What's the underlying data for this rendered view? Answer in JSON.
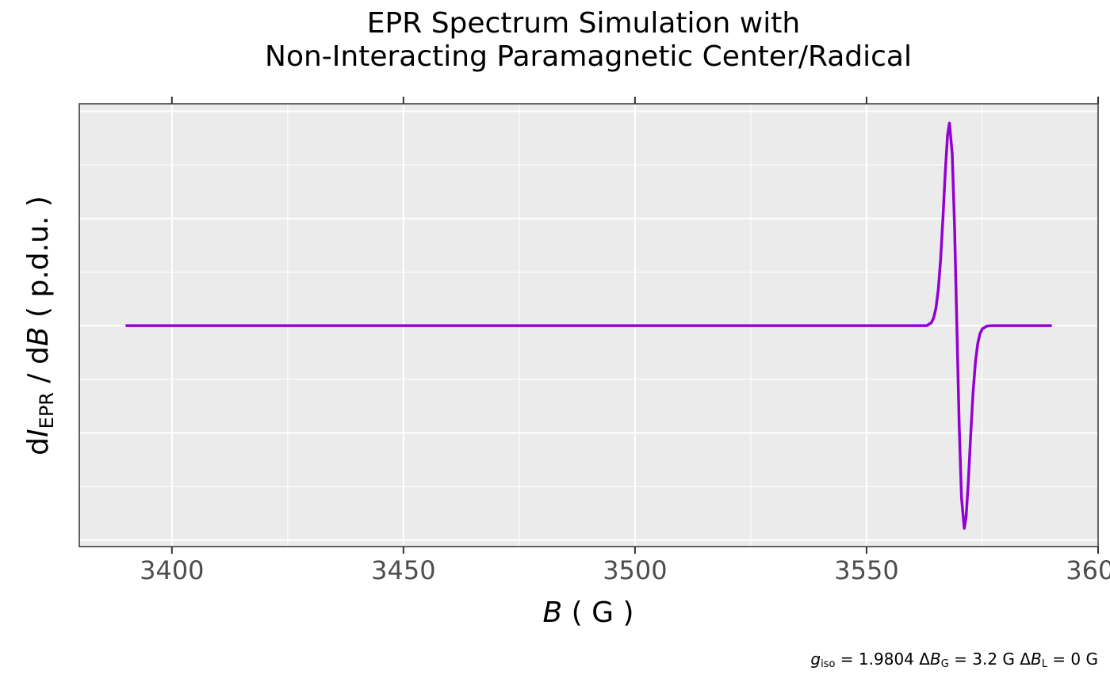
{
  "chart_data": {
    "type": "line",
    "title": [
      "EPR Spectrum Simulation with",
      "Non-Interacting Paramagnetic Center/Radical"
    ],
    "x_label_parts": [
      "B",
      " ( G )"
    ],
    "y_label_parts": [
      "d",
      "I",
      "EPR",
      " / d",
      "B",
      "  ( p.d.u. )"
    ],
    "caption_parts": [
      "g",
      "iso",
      " = 1.9804   Δ",
      "B",
      "G",
      " = 3.2  G   Δ",
      "B",
      "L",
      " = 0  G"
    ],
    "x": [
      3390,
      3560,
      3562,
      3563,
      3564,
      3564.5,
      3565,
      3565.5,
      3566,
      3566.5,
      3567,
      3567.5,
      3567.9,
      3568.5,
      3569,
      3569.5,
      3570,
      3570.5,
      3571.1,
      3571.5,
      3572,
      3572.5,
      3573,
      3573.5,
      3574,
      3574.5,
      3575,
      3576,
      3577,
      3590
    ],
    "series": [
      {
        "color": "#9400d3",
        "values": [
          0,
          0,
          0,
          0,
          0.029,
          0.074,
          0.168,
          0.342,
          0.623,
          1.007,
          1.436,
          1.783,
          1.89,
          1.602,
          0.927,
          0,
          -0.927,
          -1.602,
          -1.89,
          -1.783,
          -1.436,
          -1.007,
          -0.623,
          -0.342,
          -0.168,
          -0.074,
          -0.029,
          -0.003,
          0,
          0
        ]
      }
    ],
    "xlim": [
      3380,
      3600
    ],
    "xticks": [
      3400,
      3450,
      3500,
      3550,
      3600
    ],
    "ylim": [
      -2.06,
      2.07
    ],
    "ygrid": [
      -2,
      -1,
      0,
      1,
      2
    ],
    "grid": true
  }
}
